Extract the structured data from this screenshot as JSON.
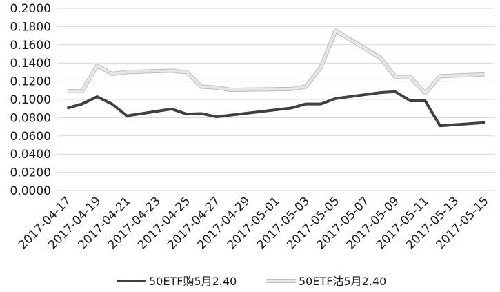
{
  "chart_data": {
    "type": "line",
    "title": "",
    "xlabel": "",
    "ylabel": "",
    "ylim": [
      0,
      0.2
    ],
    "y_ticks": [
      "0.0000",
      "0.0200",
      "0.0400",
      "0.0600",
      "0.0800",
      "0.1000",
      "0.1200",
      "0.1400",
      "0.1600",
      "0.1800",
      "0.2000"
    ],
    "x_ticks": [
      "2017-04-17",
      "2017-04-19",
      "2017-04-21",
      "2017-04-23",
      "2017-04-25",
      "2017-04-27",
      "2017-04-29",
      "2017-05-01",
      "2017-05-03",
      "2017-05-05",
      "2017-05-07",
      "2017-05-09",
      "2017-05-11",
      "2017-05-13",
      "2017-05-15"
    ],
    "grid": true,
    "legend_position": "bottom",
    "series": [
      {
        "name": "50ETF购5月2.40",
        "color": "#404040",
        "points": [
          [
            "2017-04-17",
            0.0905
          ],
          [
            "2017-04-18",
            0.095
          ],
          [
            "2017-04-19",
            0.103
          ],
          [
            "2017-04-20",
            0.095
          ],
          [
            "2017-04-21",
            0.082
          ],
          [
            "2017-04-24",
            0.0895
          ],
          [
            "2017-04-25",
            0.084
          ],
          [
            "2017-04-26",
            0.0845
          ],
          [
            "2017-04-27",
            0.081
          ],
          [
            "2017-05-02",
            0.0905
          ],
          [
            "2017-05-03",
            0.095
          ],
          [
            "2017-05-04",
            0.095
          ],
          [
            "2017-05-05",
            0.101
          ],
          [
            "2017-05-08",
            0.1075
          ],
          [
            "2017-05-09",
            0.1085
          ],
          [
            "2017-05-10",
            0.0985
          ],
          [
            "2017-05-11",
            0.0985
          ],
          [
            "2017-05-12",
            0.071
          ],
          [
            "2017-05-15",
            0.0745
          ]
        ]
      },
      {
        "name": "50ETF沽5月2.40",
        "color": "#e6e6e6",
        "points": [
          [
            "2017-04-17",
            0.109
          ],
          [
            "2017-04-18",
            0.109
          ],
          [
            "2017-04-19",
            0.137
          ],
          [
            "2017-04-20",
            0.128
          ],
          [
            "2017-04-21",
            0.13
          ],
          [
            "2017-04-24",
            0.1315
          ],
          [
            "2017-04-25",
            0.13
          ],
          [
            "2017-04-26",
            0.114
          ],
          [
            "2017-04-27",
            0.113
          ],
          [
            "2017-04-28",
            0.1105
          ],
          [
            "2017-05-02",
            0.1115
          ],
          [
            "2017-05-03",
            0.114
          ],
          [
            "2017-05-04",
            0.135
          ],
          [
            "2017-05-05",
            0.1755
          ],
          [
            "2017-05-08",
            0.1455
          ],
          [
            "2017-05-09",
            0.1245
          ],
          [
            "2017-05-10",
            0.1245
          ],
          [
            "2017-05-11",
            0.107
          ],
          [
            "2017-05-12",
            0.1255
          ],
          [
            "2017-05-15",
            0.1275
          ]
        ]
      }
    ]
  }
}
